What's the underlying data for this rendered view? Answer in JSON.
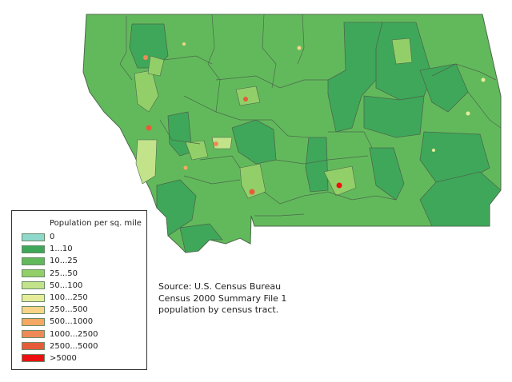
{
  "legend": {
    "title": "Population per sq. mile",
    "items": [
      {
        "label": "0",
        "color": "#8fd8cc"
      },
      {
        "label": "1...10",
        "color": "#3fa75a"
      },
      {
        "label": "10...25",
        "color": "#62b95c"
      },
      {
        "label": "25...50",
        "color": "#93cf69"
      },
      {
        "label": "50...100",
        "color": "#c2e38a"
      },
      {
        "label": "100...250",
        "color": "#e6ed9a"
      },
      {
        "label": "250...500",
        "color": "#f8d488"
      },
      {
        "label": "500...1000",
        "color": "#f5a862"
      },
      {
        "label": "1000...2500",
        "color": "#ee8a57"
      },
      {
        "label": "2500...5000",
        "color": "#e65c3a"
      },
      {
        "label": ">5000",
        "color": "#ee1010"
      }
    ]
  },
  "source": {
    "line1": "Source: U.S. Census Bureau",
    "line2": "Census 2000 Summary File 1",
    "line3": "population by census tract."
  }
}
